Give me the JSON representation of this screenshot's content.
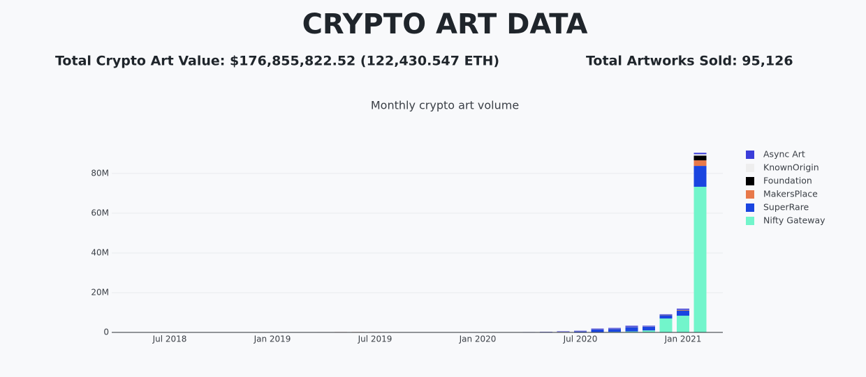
{
  "header": {
    "title": "CRYPTO ART DATA",
    "total_value": "Total Crypto Art Value: $176,855,822.52 (122,430.547 ETH)",
    "total_sold": "Total Artworks Sold: 95,126"
  },
  "chart_data": {
    "type": "stacked-bar",
    "title": "Monthly crypto art volume",
    "categories": [
      "2018-04",
      "2018-05",
      "2018-06",
      "2018-07",
      "2018-08",
      "2018-09",
      "2018-10",
      "2018-11",
      "2018-12",
      "2019-01",
      "2019-02",
      "2019-03",
      "2019-04",
      "2019-05",
      "2019-06",
      "2019-07",
      "2019-08",
      "2019-09",
      "2019-10",
      "2019-11",
      "2019-12",
      "2020-01",
      "2020-02",
      "2020-03",
      "2020-04",
      "2020-05",
      "2020-06",
      "2020-07",
      "2020-08",
      "2020-09",
      "2020-10",
      "2020-11",
      "2020-12",
      "2021-01",
      "2021-02"
    ],
    "series": [
      {
        "name": "Nifty Gateway",
        "color": "#72f5cb",
        "values": [
          0,
          0,
          0,
          0,
          0,
          0,
          0,
          0,
          0,
          0,
          0,
          0,
          0,
          0,
          0,
          0,
          0,
          0,
          0,
          0,
          0,
          0,
          0,
          0,
          0,
          0,
          0,
          100000,
          200000,
          300000,
          500000,
          1000000,
          7000000,
          8400000,
          73300000
        ]
      },
      {
        "name": "SuperRare",
        "color": "#1a45e0",
        "values": [
          60000,
          80000,
          70000,
          80000,
          90000,
          80000,
          90000,
          0,
          90000,
          100000,
          120000,
          100000,
          60000,
          50000,
          60000,
          100000,
          60000,
          0,
          60000,
          0,
          50000,
          0,
          60000,
          70000,
          80000,
          150000,
          250000,
          400000,
          1200000,
          1400000,
          2200000,
          1800000,
          1600000,
          2500000,
          10500000
        ]
      },
      {
        "name": "MakersPlace",
        "color": "#e8794a",
        "values": [
          0,
          0,
          0,
          0,
          0,
          0,
          0,
          0,
          0,
          0,
          0,
          0,
          120000,
          150000,
          150000,
          100000,
          0,
          0,
          0,
          0,
          0,
          0,
          0,
          0,
          0,
          0,
          50000,
          60000,
          60000,
          60000,
          70000,
          80000,
          100000,
          200000,
          2800000
        ]
      },
      {
        "name": "Foundation",
        "color": "#000000",
        "values": [
          0,
          0,
          0,
          0,
          0,
          0,
          0,
          0,
          0,
          0,
          0,
          0,
          0,
          0,
          0,
          0,
          0,
          0,
          0,
          0,
          0,
          0,
          0,
          0,
          0,
          0,
          0,
          0,
          0,
          0,
          0,
          0,
          50000,
          100000,
          2400000
        ]
      },
      {
        "name": "KnownOrigin",
        "color": "#eeeeee",
        "values": [
          20000,
          20000,
          20000,
          20000,
          20000,
          20000,
          20000,
          0,
          20000,
          20000,
          20000,
          20000,
          30000,
          30000,
          30000,
          30000,
          20000,
          20000,
          20000,
          20000,
          20000,
          20000,
          20000,
          20000,
          30000,
          40000,
          40000,
          60000,
          60000,
          80000,
          80000,
          80000,
          100000,
          150000,
          700000
        ]
      },
      {
        "name": "Async Art",
        "color": "#3b3dd9",
        "values": [
          0,
          0,
          0,
          0,
          0,
          0,
          0,
          0,
          0,
          0,
          0,
          0,
          0,
          0,
          0,
          0,
          0,
          0,
          0,
          0,
          0,
          0,
          30000,
          60000,
          80000,
          100000,
          200000,
          200000,
          400000,
          400000,
          500000,
          400000,
          300000,
          600000,
          700000
        ]
      }
    ],
    "xticks": [
      {
        "value": "2018-07",
        "label": "Jul 2018"
      },
      {
        "value": "2019-01",
        "label": "Jan 2019"
      },
      {
        "value": "2019-07",
        "label": "Jul 2019"
      },
      {
        "value": "2020-01",
        "label": "Jan 2020"
      },
      {
        "value": "2020-07",
        "label": "Jul 2020"
      },
      {
        "value": "2021-01",
        "label": "Jan 2021"
      }
    ],
    "ylim": [
      0,
      94000000
    ],
    "yticks": [
      0,
      {
        "value": 20000000,
        "label": "20M"
      },
      {
        "value": 40000000,
        "label": "40M"
      },
      {
        "value": 60000000,
        "label": "60M"
      },
      {
        "value": 80000000,
        "label": "80M"
      }
    ],
    "grid": true
  }
}
